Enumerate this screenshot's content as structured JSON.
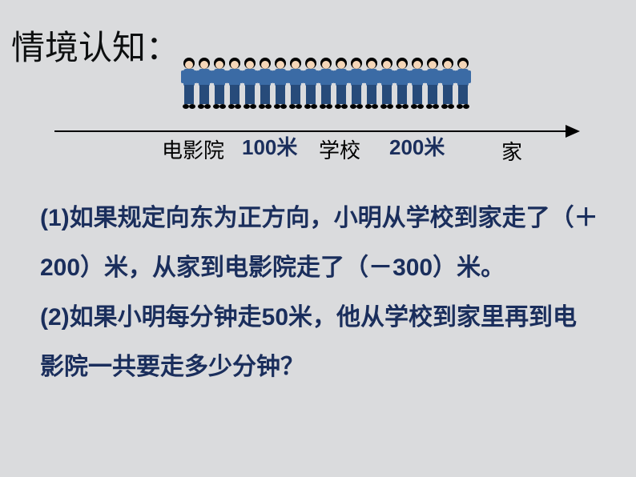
{
  "title": "情境认知：",
  "diagram": {
    "people_count": 19,
    "person_colors": {
      "hair": "#000000",
      "skin": "#f5d6b8",
      "blouse": "#3b6ba5",
      "pants": "#274b7a",
      "shoes": "#000000"
    },
    "line_color": "#000000",
    "labels": {
      "cinema": "电影院",
      "dist1": "100米",
      "school": "学校",
      "dist2": "200米",
      "home": "家"
    },
    "label_color_location": "#000000",
    "label_color_distance": "#1a2e5c"
  },
  "questions": {
    "q1_prefix": "(1)如果规定向东为正方向，小明从学校到家走了（＋",
    "q1_val1": "200",
    "q1_mid": "）米，从家到电影院走了（－",
    "q1_val2": "300",
    "q1_suffix": "）米。",
    "q2": "(2)如果小明每分钟走50米，他从学校到家里再到电影院一共要走多少分钟？"
  },
  "style": {
    "background": "#dadbdd",
    "title_color": "#0d0f10",
    "text_color": "#1a2e5c",
    "title_fontsize": 42,
    "body_fontsize": 30,
    "line_height": 62
  }
}
